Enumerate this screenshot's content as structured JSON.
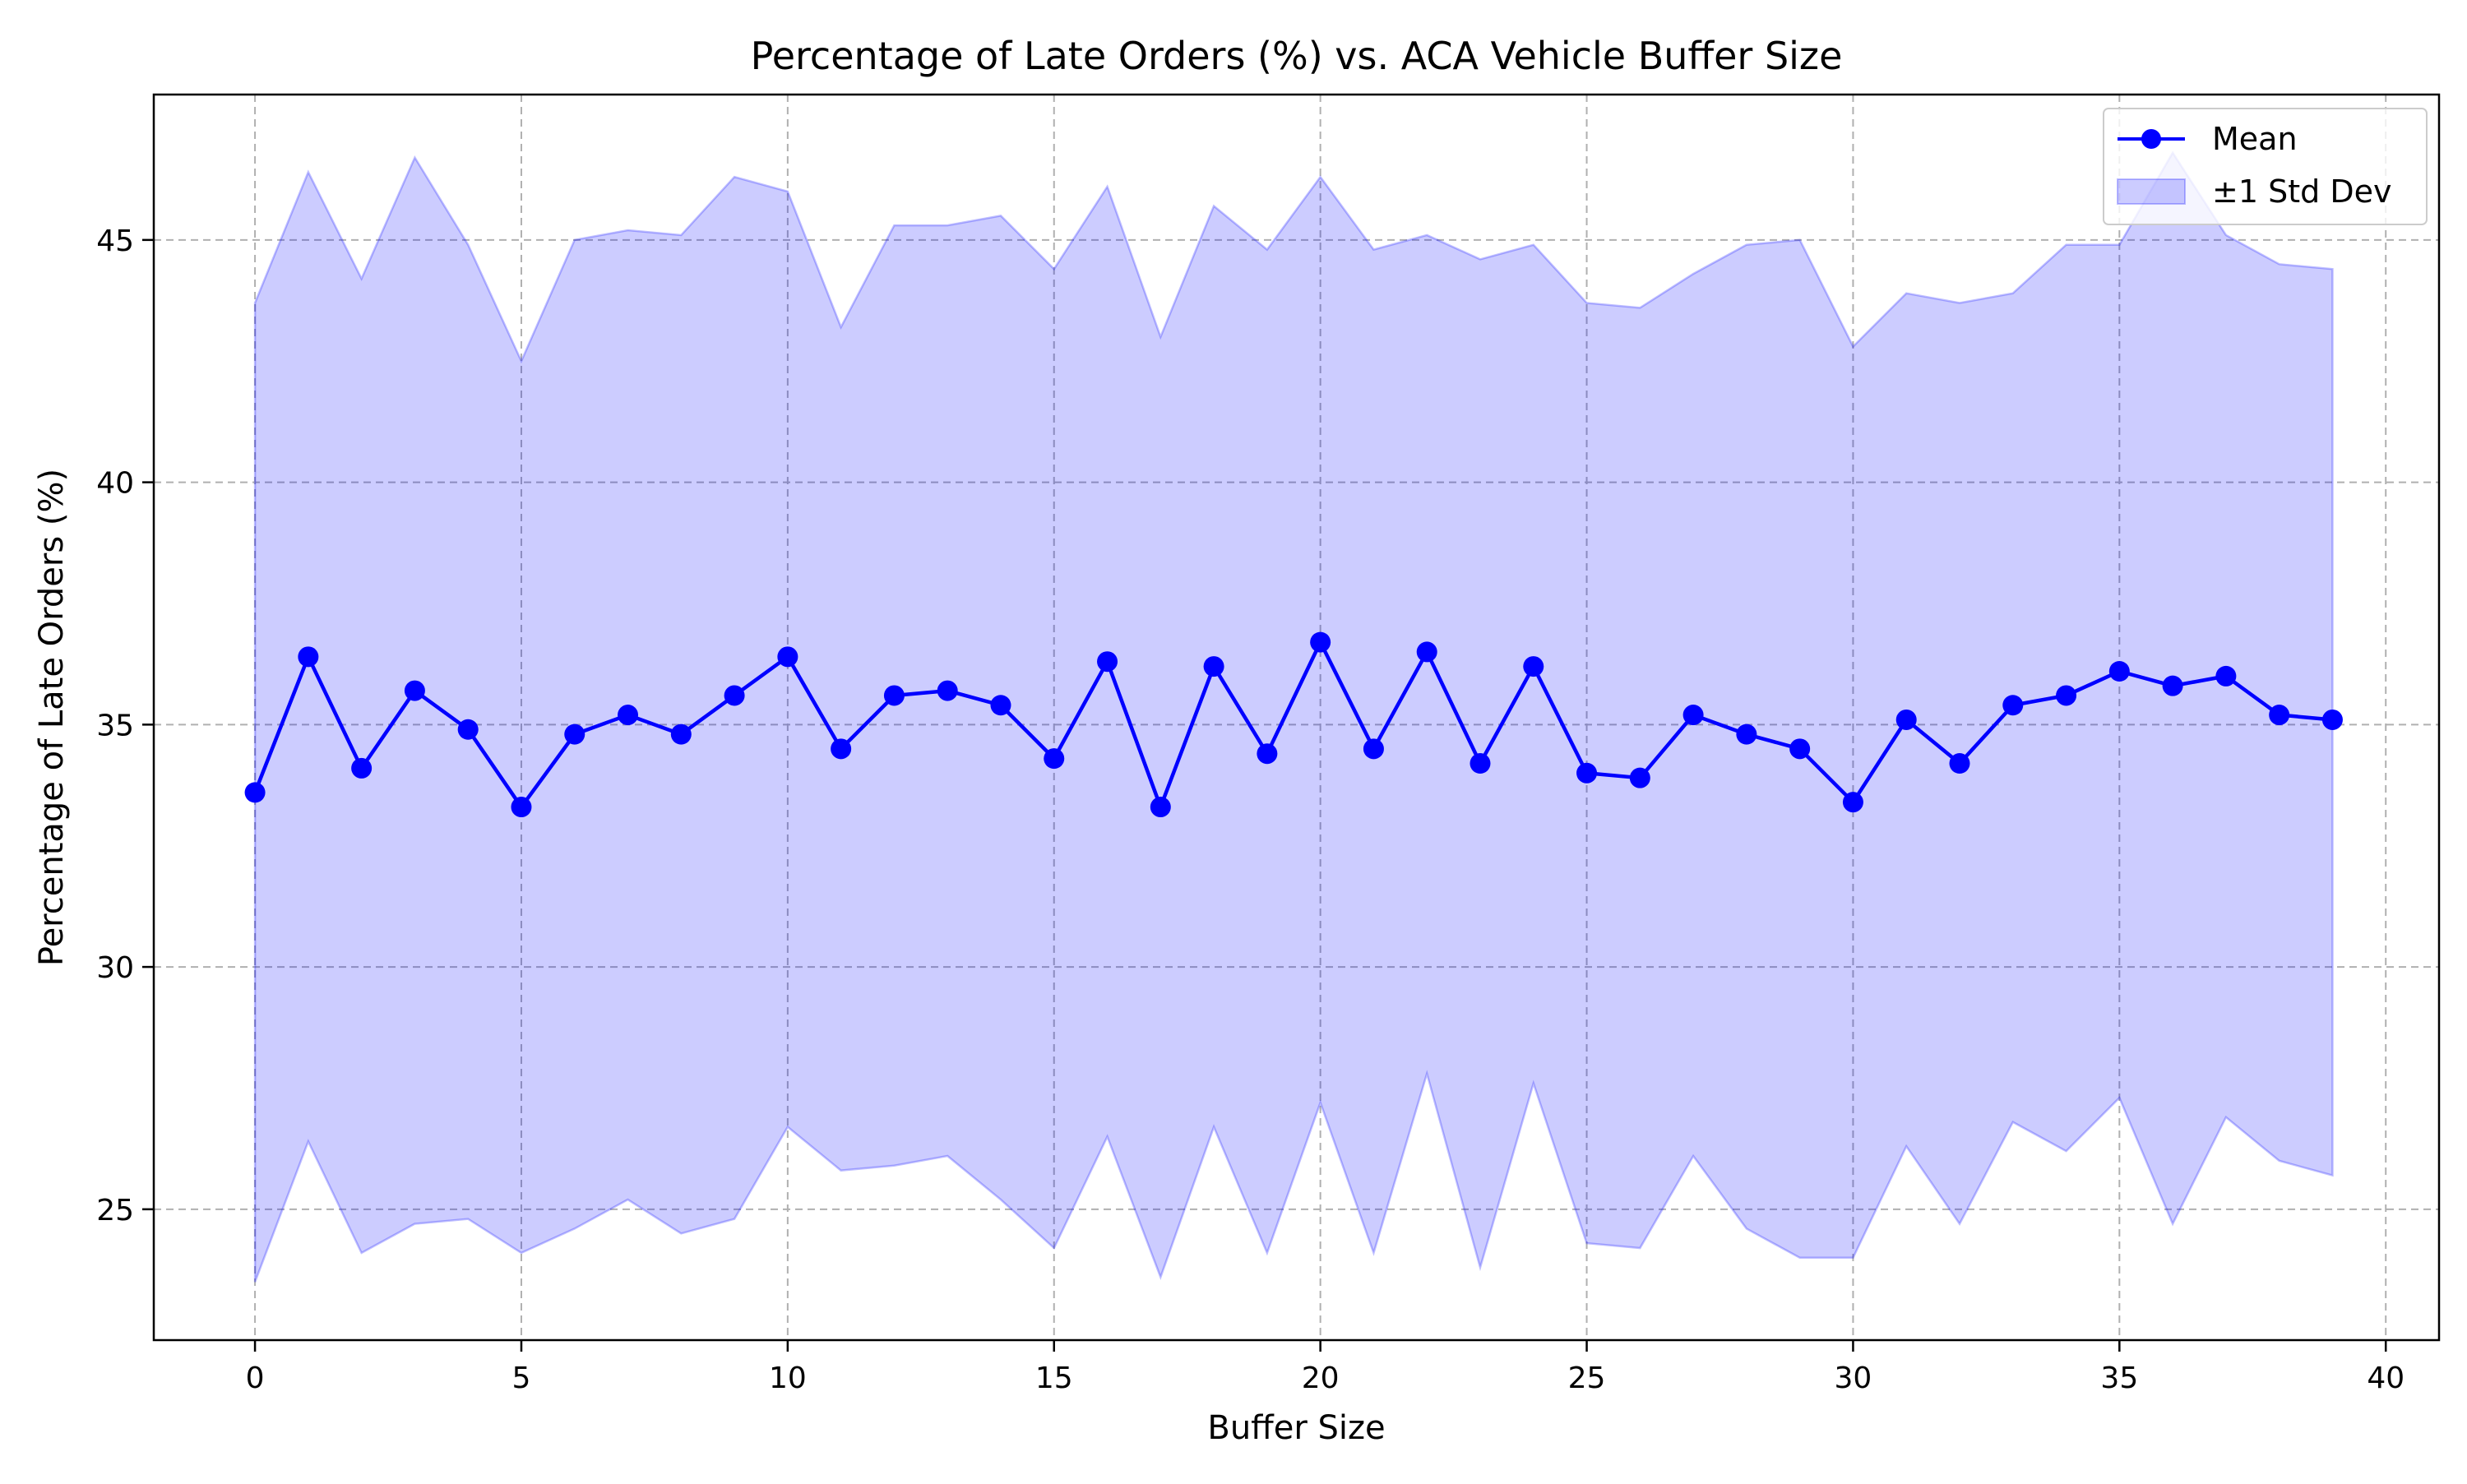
{
  "chart_data": {
    "type": "line",
    "title": "Percentage of Late Orders (%) vs. ACA Vehicle Buffer Size",
    "xlabel": "Buffer Size",
    "ylabel": "Percentage of Late Orders (%)",
    "xlim": [
      -1.9,
      41.0
    ],
    "ylim": [
      22.3,
      48.0
    ],
    "xticks": [
      0,
      5,
      10,
      15,
      20,
      25,
      30,
      35,
      40
    ],
    "xtick_labels": [
      "0",
      "5",
      "10",
      "15",
      "20",
      "25",
      "30",
      "35",
      "40"
    ],
    "yticks": [
      25,
      30,
      35,
      40,
      45
    ],
    "ytick_labels": [
      "25",
      "30",
      "35",
      "40",
      "45"
    ],
    "grid": true,
    "legend_position": "top-right",
    "x": [
      0,
      1,
      2,
      3,
      4,
      5,
      6,
      7,
      8,
      9,
      10,
      11,
      12,
      13,
      14,
      15,
      16,
      17,
      18,
      19,
      20,
      21,
      22,
      23,
      24,
      25,
      26,
      27,
      28,
      29,
      30,
      31,
      32,
      33,
      34,
      35,
      36,
      37,
      38,
      39
    ],
    "series": [
      {
        "name": "Mean",
        "kind": "line-marker",
        "color": "#0000ff",
        "values": [
          33.6,
          36.4,
          34.1,
          35.7,
          34.9,
          33.3,
          34.8,
          35.2,
          34.8,
          35.6,
          36.4,
          34.5,
          35.6,
          35.7,
          35.4,
          34.3,
          36.3,
          33.3,
          36.2,
          34.4,
          36.7,
          34.5,
          36.5,
          34.2,
          36.2,
          34.0,
          33.9,
          35.2,
          34.8,
          34.5,
          33.4,
          35.1,
          34.2,
          35.4,
          35.6,
          36.1,
          35.8,
          36.0,
          35.2,
          35.1
        ]
      },
      {
        "name": "±1 Std Dev",
        "kind": "band",
        "color": "#0000ff",
        "fill_opacity": 0.2,
        "upper": [
          43.7,
          46.4,
          44.2,
          46.7,
          44.9,
          42.5,
          45.0,
          45.2,
          45.1,
          46.3,
          46.0,
          43.2,
          45.3,
          45.3,
          45.5,
          44.4,
          46.1,
          43.0,
          45.7,
          44.8,
          46.3,
          44.8,
          45.1,
          44.6,
          44.9,
          43.7,
          43.6,
          44.3,
          44.9,
          45.0,
          42.8,
          43.9,
          43.7,
          43.9,
          44.9,
          44.9,
          46.8,
          45.1,
          44.5,
          44.4
        ],
        "lower": [
          23.5,
          26.4,
          24.1,
          24.7,
          24.8,
          24.1,
          24.6,
          25.2,
          24.5,
          24.8,
          26.7,
          25.8,
          25.9,
          26.1,
          25.2,
          24.2,
          26.5,
          23.6,
          26.7,
          24.1,
          27.2,
          24.1,
          27.8,
          23.8,
          27.6,
          24.3,
          24.2,
          26.1,
          24.6,
          24.0,
          24.0,
          26.3,
          24.7,
          26.8,
          26.2,
          27.3,
          24.7,
          26.9,
          26.0,
          25.7
        ]
      }
    ]
  }
}
